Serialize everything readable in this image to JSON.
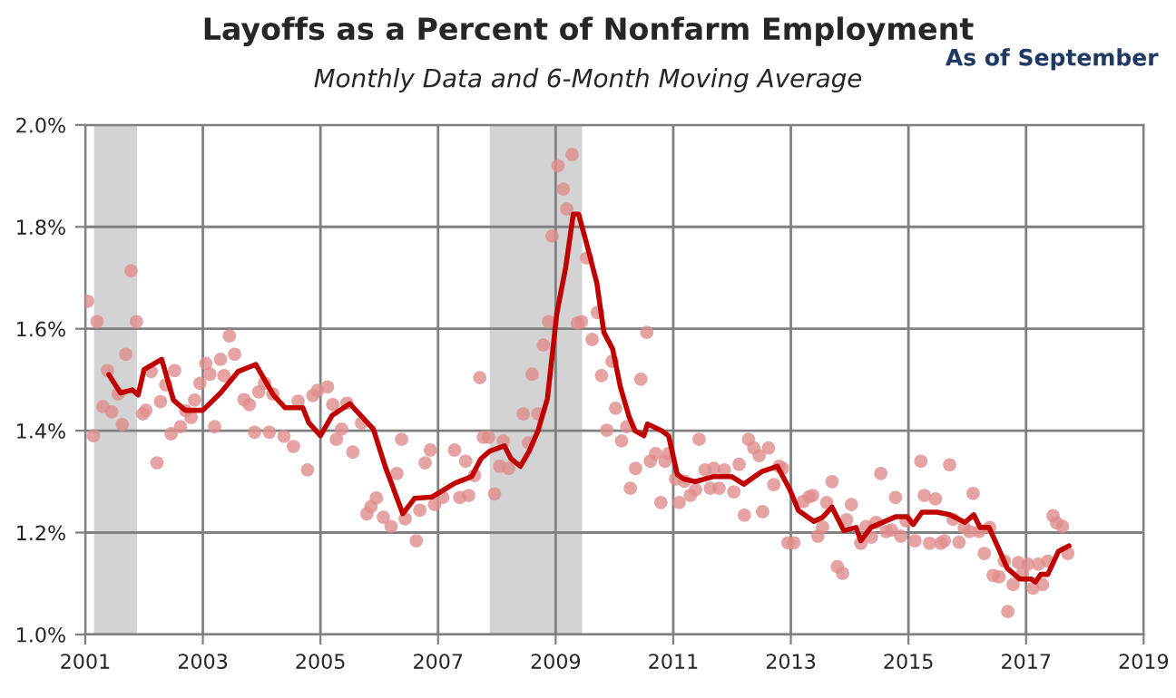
{
  "chart_data": {
    "type": "scatter",
    "title": "Layoffs as a Percent of Nonfarm Employment",
    "subtitle": "Monthly Data and 6-Month Moving Average",
    "annotations": [
      "As of September"
    ],
    "xlim": [
      2001,
      2019
    ],
    "xticks": [
      2001,
      2003,
      2005,
      2007,
      2009,
      2011,
      2013,
      2015,
      2017,
      2019
    ],
    "ylim": [
      1.0,
      2.0
    ],
    "yticks": [
      {
        "value": 1.0,
        "label": "1.0%"
      },
      {
        "value": 1.2,
        "label": "1.2%"
      },
      {
        "value": 1.4,
        "label": "1.4%"
      },
      {
        "value": 1.6,
        "label": "1.6%"
      },
      {
        "value": 1.8,
        "label": "1.8%"
      },
      {
        "value": 2.0,
        "label": "2.0%"
      }
    ],
    "grid": true,
    "legend": false,
    "bands": [
      {
        "axis": "x",
        "from": 2001.15,
        "to": 2001.88,
        "color": "#d3d3d3"
      },
      {
        "axis": "x",
        "from": 2007.88,
        "to": 2009.45,
        "color": "#d3d3d3"
      }
    ],
    "series": [
      {
        "color": "#e08c8c",
        "marker": "circle",
        "x": [
          2001.04,
          2001.14,
          2001.2,
          2001.3,
          2001.38,
          2001.45,
          2001.56,
          2001.63,
          2001.69,
          2001.78,
          2001.87,
          2001.98,
          2002.03,
          2002.12,
          2002.22,
          2002.28,
          2002.37,
          2002.46,
          2002.52,
          2002.62,
          2002.71,
          2002.8,
          2002.86,
          2002.95,
          2003.05,
          2003.12,
          2003.2,
          2003.3,
          2003.36,
          2003.45,
          2003.54,
          2003.7,
          2003.79,
          2003.88,
          2003.95,
          2004.05,
          2004.13,
          2004.19,
          2004.38,
          2004.54,
          2004.62,
          2004.78,
          2004.87,
          2004.95,
          2005.12,
          2005.21,
          2005.27,
          2005.36,
          2005.45,
          2005.55,
          2005.7,
          2005.79,
          2005.86,
          2005.95,
          2006.07,
          2006.2,
          2006.3,
          2006.38,
          2006.44,
          2006.63,
          2006.69,
          2006.78,
          2006.87,
          2006.94,
          2007.08,
          2007.28,
          2007.37,
          2007.47,
          2007.52,
          2007.62,
          2007.71,
          2007.77,
          2007.86,
          2007.96,
          2008.05,
          2008.11,
          2008.2,
          2008.45,
          2008.54,
          2008.6,
          2008.7,
          2008.79,
          2008.88,
          2008.94,
          2009.04,
          2009.13,
          2009.19,
          2009.28,
          2009.37,
          2009.44,
          2009.53,
          2009.62,
          2009.71,
          2009.78,
          2009.87,
          2009.96,
          2010.02,
          2010.12,
          2010.21,
          2010.27,
          2010.36,
          2010.45,
          2010.55,
          2010.61,
          2010.7,
          2010.79,
          2010.86,
          2010.92,
          2011.04,
          2011.1,
          2011.19,
          2011.29,
          2011.38,
          2011.44,
          2011.54,
          2011.63,
          2011.69,
          2011.78,
          2011.87,
          2012.03,
          2012.12,
          2012.21,
          2012.28,
          2012.37,
          2012.46,
          2012.52,
          2012.62,
          2012.71,
          2012.8,
          2012.86,
          2012.95,
          2013.05,
          2013.21,
          2013.31,
          2013.37,
          2013.46,
          2013.54,
          2013.61,
          2013.7,
          2013.79,
          2013.88,
          2013.95,
          2014.03,
          2014.19,
          2014.28,
          2014.37,
          2014.45,
          2014.53,
          2014.62,
          2014.71,
          2014.78,
          2014.87,
          2014.96,
          2015.11,
          2015.21,
          2015.27,
          2015.36,
          2015.46,
          2015.55,
          2015.61,
          2015.7,
          2015.76,
          2015.86,
          2015.95,
          2016.04,
          2016.1,
          2016.2,
          2016.29,
          2016.38,
          2016.44,
          2016.54,
          2016.63,
          2016.69,
          2016.78,
          2016.87,
          2016.94,
          2017.03,
          2017.12,
          2017.21,
          2017.28,
          2017.37,
          2017.46,
          2017.52,
          2017.62,
          2017.71
        ],
        "values": [
          1.654,
          1.39,
          1.614,
          1.447,
          1.518,
          1.437,
          1.472,
          1.412,
          1.55,
          1.714,
          1.614,
          1.433,
          1.44,
          1.516,
          1.337,
          1.457,
          1.49,
          1.394,
          1.518,
          1.408,
          1.439,
          1.426,
          1.46,
          1.493,
          1.532,
          1.511,
          1.408,
          1.54,
          1.508,
          1.586,
          1.55,
          1.461,
          1.451,
          1.397,
          1.476,
          1.493,
          1.397,
          1.472,
          1.389,
          1.369,
          1.458,
          1.323,
          1.469,
          1.479,
          1.486,
          1.451,
          1.383,
          1.403,
          1.454,
          1.358,
          1.415,
          1.237,
          1.251,
          1.268,
          1.23,
          1.212,
          1.316,
          1.383,
          1.227,
          1.184,
          1.244,
          1.337,
          1.362,
          1.255,
          1.269,
          1.362,
          1.269,
          1.34,
          1.273,
          1.312,
          1.504,
          1.387,
          1.387,
          1.276,
          1.33,
          1.38,
          1.326,
          1.433,
          1.376,
          1.511,
          1.433,
          1.568,
          1.614,
          1.782,
          1.92,
          1.874,
          1.835,
          1.942,
          1.611,
          1.614,
          1.739,
          1.579,
          1.632,
          1.508,
          1.401,
          1.536,
          1.444,
          1.38,
          1.408,
          1.287,
          1.326,
          1.501,
          1.593,
          1.34,
          1.355,
          1.259,
          1.34,
          1.355,
          1.305,
          1.259,
          1.301,
          1.273,
          1.284,
          1.383,
          1.323,
          1.287,
          1.326,
          1.287,
          1.323,
          1.28,
          1.334,
          1.234,
          1.383,
          1.366,
          1.351,
          1.241,
          1.366,
          1.294,
          1.33,
          1.326,
          1.18,
          1.18,
          1.261,
          1.27,
          1.273,
          1.193,
          1.211,
          1.259,
          1.3,
          1.133,
          1.12,
          1.225,
          1.255,
          1.179,
          1.212,
          1.191,
          1.22,
          1.316,
          1.202,
          1.205,
          1.269,
          1.193,
          1.223,
          1.184,
          1.34,
          1.273,
          1.179,
          1.266,
          1.179,
          1.184,
          1.333,
          1.226,
          1.181,
          1.21,
          1.202,
          1.277,
          1.202,
          1.159,
          1.21,
          1.116,
          1.113,
          1.144,
          1.045,
          1.098,
          1.141,
          1.12,
          1.138,
          1.091,
          1.138,
          1.098,
          1.144,
          1.233,
          1.219,
          1.212,
          1.159
        ]
      },
      {
        "type": "line",
        "color": "#c00000",
        "line_style": "solid",
        "x": [
          2001.4,
          2001.6,
          2001.8,
          2001.9,
          2002.0,
          2002.3,
          2002.5,
          2002.7,
          2003.0,
          2003.3,
          2003.6,
          2003.9,
          2004.2,
          2004.4,
          2004.7,
          2004.8,
          2005.0,
          2005.2,
          2005.5,
          2005.9,
          2006.1,
          2006.4,
          2006.6,
          2006.9,
          2007.27,
          2007.57,
          2007.73,
          2007.88,
          2008.13,
          2008.24,
          2008.4,
          2008.55,
          2008.7,
          2008.86,
          2009.02,
          2009.17,
          2009.3,
          2009.39,
          2009.52,
          2009.7,
          2009.82,
          2009.97,
          2010.1,
          2010.25,
          2010.35,
          2010.5,
          2010.56,
          2010.8,
          2010.92,
          2011.07,
          2011.18,
          2011.38,
          2011.69,
          2011.99,
          2012.2,
          2012.51,
          2012.77,
          2012.98,
          2013.13,
          2013.39,
          2013.54,
          2013.7,
          2013.9,
          2014.11,
          2014.19,
          2014.36,
          2014.78,
          2014.98,
          2015.08,
          2015.23,
          2015.49,
          2015.7,
          2015.96,
          2016.11,
          2016.22,
          2016.37,
          2016.52,
          2016.68,
          2016.89,
          2017.09,
          2017.16,
          2017.25,
          2017.37,
          2017.55,
          2017.73
        ],
        "values": [
          1.51,
          1.474,
          1.48,
          1.47,
          1.52,
          1.54,
          1.46,
          1.44,
          1.44,
          1.474,
          1.516,
          1.53,
          1.47,
          1.445,
          1.445,
          1.416,
          1.39,
          1.43,
          1.453,
          1.403,
          1.33,
          1.237,
          1.267,
          1.27,
          1.296,
          1.31,
          1.345,
          1.36,
          1.37,
          1.345,
          1.33,
          1.36,
          1.4,
          1.463,
          1.63,
          1.72,
          1.825,
          1.825,
          1.77,
          1.69,
          1.593,
          1.56,
          1.486,
          1.427,
          1.4,
          1.39,
          1.413,
          1.4,
          1.39,
          1.314,
          1.305,
          1.3,
          1.31,
          1.31,
          1.295,
          1.32,
          1.33,
          1.285,
          1.243,
          1.222,
          1.23,
          1.25,
          1.204,
          1.21,
          1.184,
          1.21,
          1.231,
          1.231,
          1.216,
          1.24,
          1.24,
          1.235,
          1.22,
          1.235,
          1.21,
          1.21,
          1.172,
          1.13,
          1.109,
          1.109,
          1.103,
          1.118,
          1.118,
          1.163,
          1.174
        ]
      }
    ]
  }
}
